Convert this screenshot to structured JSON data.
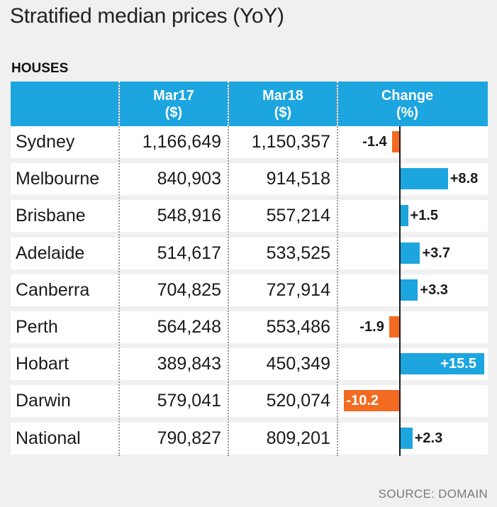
{
  "title": "Stratified median prices (YoY)",
  "subtitle": "HOUSES",
  "source": "SOURCE: DOMAIN",
  "header": {
    "col1_line1": "Mar17",
    "col1_line2": "($)",
    "col2_line1": "Mar18",
    "col2_line2": "($)",
    "col3_line1": "Change",
    "col3_line2": "(%)"
  },
  "colors": {
    "positive": "#1da5df",
    "negative": "#f26b21",
    "header": "#1da5df",
    "background": "#f0f0f0"
  },
  "chart_data": {
    "type": "table",
    "title": "Stratified median prices (YoY)",
    "subtitle": "HOUSES",
    "columns": [
      "",
      "Mar17 ($)",
      "Mar18 ($)",
      "Change (%)"
    ],
    "rows": [
      {
        "city": "Sydney",
        "mar17": "1,166,649",
        "mar18": "1,150,357",
        "change": -1.4,
        "change_label": "-1.4"
      },
      {
        "city": "Melbourne",
        "mar17": "840,903",
        "mar18": "914,518",
        "change": 8.8,
        "change_label": "+8.8"
      },
      {
        "city": "Brisbane",
        "mar17": "548,916",
        "mar18": "557,214",
        "change": 1.5,
        "change_label": "+1.5"
      },
      {
        "city": "Adelaide",
        "mar17": "514,617",
        "mar18": "533,525",
        "change": 3.7,
        "change_label": "+3.7"
      },
      {
        "city": "Canberra",
        "mar17": "704,825",
        "mar18": "727,914",
        "change": 3.3,
        "change_label": "+3.3"
      },
      {
        "city": "Perth",
        "mar17": "564,248",
        "mar18": "553,486",
        "change": -1.9,
        "change_label": "-1.9"
      },
      {
        "city": "Hobart",
        "mar17": "389,843",
        "mar18": "450,349",
        "change": 15.5,
        "change_label": "+15.5"
      },
      {
        "city": "Darwin",
        "mar17": "579,041",
        "mar18": "520,074",
        "change": -10.2,
        "change_label": "-10.2"
      },
      {
        "city": "National",
        "mar17": "790,827",
        "mar18": "809,201",
        "change": 2.3,
        "change_label": "+2.3"
      }
    ],
    "change_range": [
      -10.2,
      15.5
    ]
  }
}
